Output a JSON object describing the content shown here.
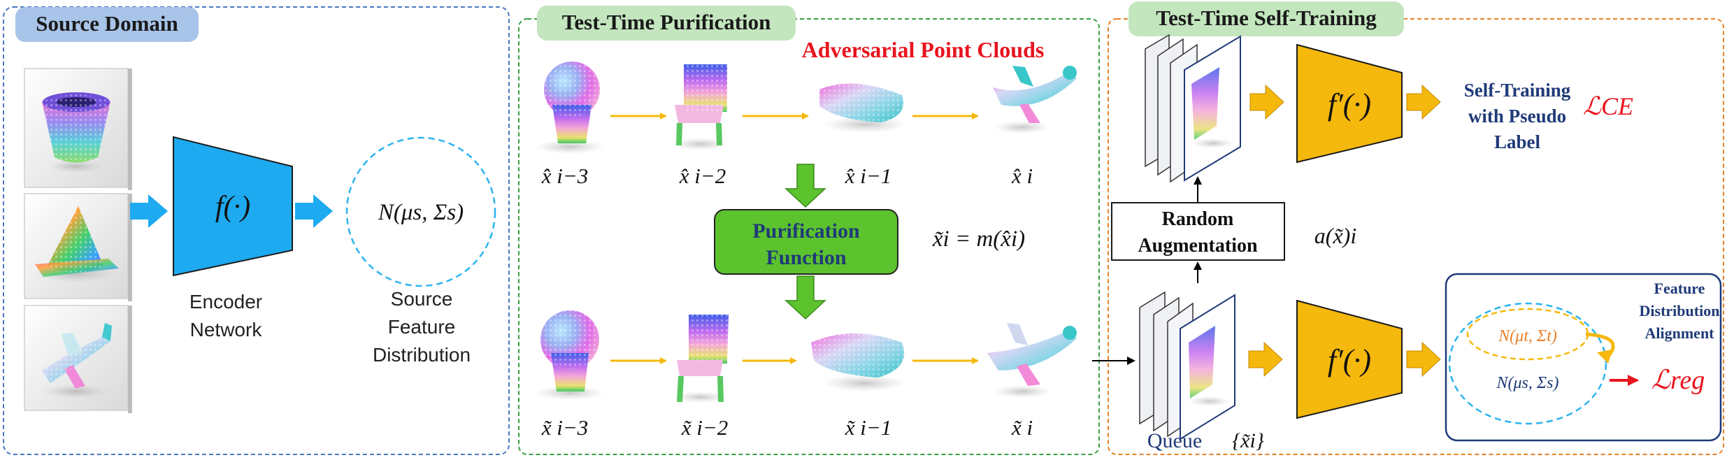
{
  "source_domain": {
    "title": "Source Domain",
    "encoder_symbol": "f(·)",
    "encoder_label_1": "Encoder",
    "encoder_label_2": "Network",
    "distribution_symbol": "N(μs, Σs)",
    "distribution_label_1": "Source",
    "distribution_label_2": "Feature",
    "distribution_label_3": "Distribution"
  },
  "purification": {
    "title": "Test-Time Purification",
    "adversarial_label": "Adversarial Point Clouds",
    "adv_labels": [
      "x̂ i−3",
      "x̂ i−2",
      "x̂ i−1",
      "x̂ i"
    ],
    "pur_labels": [
      "x̃ i−3",
      "x̃ i−2",
      "x̃ i−1",
      "x̃ i"
    ],
    "function_label_1": "Purification",
    "function_label_2": "Function",
    "function_equation": "x̃i = m(x̂i)"
  },
  "self_training": {
    "title": "Test-Time Self-Training",
    "model_symbol": "f′(·)",
    "self_training_label_1": "Self-Training",
    "self_training_label_2": "with Pseudo",
    "self_training_label_3": "Label",
    "loss_ce": "ℒCE",
    "augment_label_1": "Random",
    "augment_label_2": "Augmentation",
    "augment_symbol": "a(x̃)i",
    "queue_label": "Queue",
    "queue_symbol": "{x̃i}",
    "alignment_label_1": "Feature",
    "alignment_label_2": "Distribution",
    "alignment_label_3": "Alignment",
    "target_dist": "N(μt, Σt)",
    "source_dist": "N(μs, Σs)",
    "loss_reg": "ℒreg"
  },
  "colors": {
    "source_border": "#4a78c4",
    "purification_border": "#3aa047",
    "selftrain_border": "#e8822a",
    "title_blue_bg": "#a8c4e8",
    "title_green_bg": "#c4e6bf",
    "encoder_fill": "#1eaaf0",
    "model_fill": "#f5b80c",
    "block_arrow_blue": "#1eaaf0",
    "block_arrow_orange": "#f5b80c",
    "purif_fill": "#5cc22e",
    "adv_red": "#e8141e",
    "navy": "#1f3a78",
    "dashed_circle": "#2ab4ee"
  }
}
